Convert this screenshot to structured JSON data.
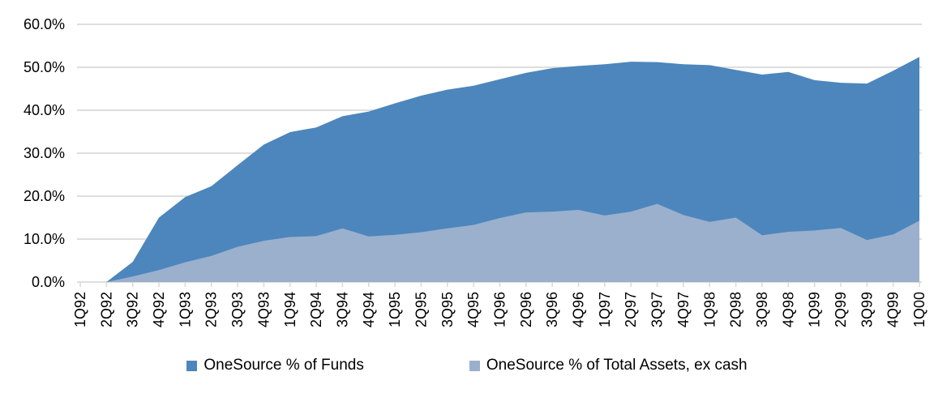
{
  "chart_data": {
    "type": "area",
    "title": "",
    "xlabel": "",
    "ylabel": "",
    "categories": [
      "1Q92",
      "2Q92",
      "3Q92",
      "4Q92",
      "1Q93",
      "2Q93",
      "3Q93",
      "4Q93",
      "1Q94",
      "2Q94",
      "3Q94",
      "4Q94",
      "1Q95",
      "2Q95",
      "3Q95",
      "4Q95",
      "1Q96",
      "2Q96",
      "3Q96",
      "4Q96",
      "1Q97",
      "2Q97",
      "3Q97",
      "4Q97",
      "1Q98",
      "2Q98",
      "3Q98",
      "4Q98",
      "1Q99",
      "2Q99",
      "3Q99",
      "4Q99",
      "1Q00"
    ],
    "series": [
      {
        "name": "OneSource % of Funds",
        "color": "#4d86bc",
        "values": [
          0.0,
          0.0,
          4.7,
          15.0,
          19.8,
          22.3,
          27.2,
          32.0,
          34.9,
          36.0,
          38.6,
          39.7,
          41.6,
          43.4,
          44.8,
          45.7,
          47.2,
          48.7,
          49.8,
          50.3,
          50.7,
          51.3,
          51.2,
          50.7,
          50.5,
          49.4,
          48.3,
          48.9,
          47.0,
          46.4,
          46.2,
          49.2,
          52.4
        ]
      },
      {
        "name": "OneSource % of Total Assets, ex cash",
        "color": "#9ab0cd",
        "values": [
          0.0,
          0.0,
          1.3,
          2.8,
          4.6,
          6.1,
          8.2,
          9.6,
          10.5,
          10.7,
          12.5,
          10.6,
          11.0,
          11.6,
          12.5,
          13.3,
          14.9,
          16.2,
          16.4,
          16.8,
          15.5,
          16.4,
          18.2,
          15.6,
          14.0,
          15.0,
          10.9,
          11.7,
          12.0,
          12.6,
          9.8,
          11.1,
          14.3
        ]
      }
    ],
    "ylim": [
      0,
      60
    ],
    "y_tick_step": 10,
    "y_tick_labels": [
      "0.0%",
      "10.0%",
      "20.0%",
      "30.0%",
      "40.0%",
      "50.0%",
      "60.0%"
    ],
    "grid": true,
    "gridline_color": "#d9d9d9",
    "axis_color": "#d9d9d9",
    "text_color": "#000000",
    "background_color": "#ffffff",
    "legend_position": "bottom"
  }
}
